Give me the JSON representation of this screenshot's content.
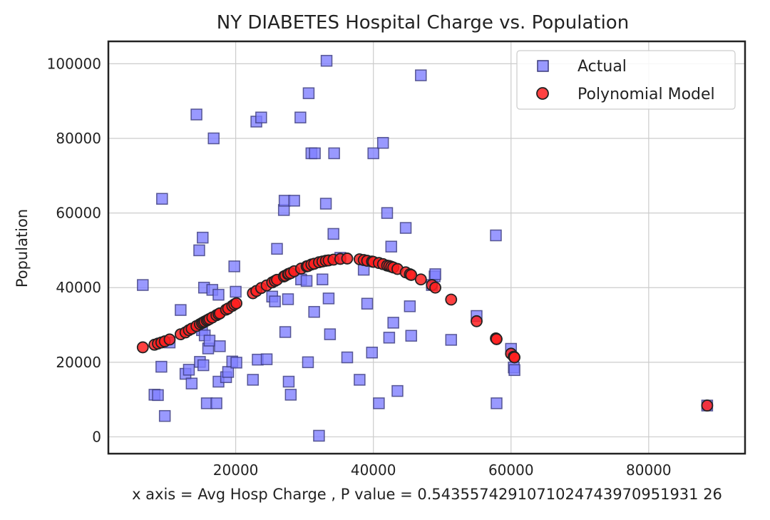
{
  "chart_data": {
    "type": "scatter",
    "title": "NY DIABETES Hospital Charge vs. Population",
    "xlabel": "x axis = Avg Hosp Charge , P value = 0.5435574291071024743970951931 26",
    "ylabel": "Population",
    "xlim": [
      1500,
      94000
    ],
    "ylim": [
      -4500,
      106000
    ],
    "x_ticks": [
      20000,
      40000,
      60000,
      80000
    ],
    "y_ticks": [
      0,
      20000,
      40000,
      60000,
      80000,
      100000
    ],
    "grid": true,
    "legend": {
      "position": "top-right",
      "entries": [
        "Actual",
        "Polynomial Model"
      ]
    },
    "series": [
      {
        "name": "Actual",
        "marker": "square",
        "color": "#7f7fff",
        "edge": "#3a3a7a",
        "points": [
          [
            6500,
            40700
          ],
          [
            8200,
            11300
          ],
          [
            8700,
            11200
          ],
          [
            9200,
            18800
          ],
          [
            9300,
            63800
          ],
          [
            9700,
            5600
          ],
          [
            10400,
            25300
          ],
          [
            12000,
            34000
          ],
          [
            12700,
            16900
          ],
          [
            13200,
            18000
          ],
          [
            13600,
            14300
          ],
          [
            14300,
            86400
          ],
          [
            14700,
            50000
          ],
          [
            14800,
            20100
          ],
          [
            15100,
            28600
          ],
          [
            15300,
            19200
          ],
          [
            15200,
            53400
          ],
          [
            15400,
            40000
          ],
          [
            15500,
            27200
          ],
          [
            15800,
            9000
          ],
          [
            16000,
            23700
          ],
          [
            16200,
            25800
          ],
          [
            16600,
            39400
          ],
          [
            16800,
            80000
          ],
          [
            17200,
            9000
          ],
          [
            17500,
            14800
          ],
          [
            17500,
            38100
          ],
          [
            17700,
            24300
          ],
          [
            18600,
            16000
          ],
          [
            18900,
            17400
          ],
          [
            19500,
            20200
          ],
          [
            19800,
            45700
          ],
          [
            20000,
            38900
          ],
          [
            20100,
            19900
          ],
          [
            22500,
            15300
          ],
          [
            23000,
            84500
          ],
          [
            23200,
            20700
          ],
          [
            23700,
            85600
          ],
          [
            24500,
            20800
          ],
          [
            25300,
            37600
          ],
          [
            25700,
            36300
          ],
          [
            26000,
            50400
          ],
          [
            27000,
            60800
          ],
          [
            27100,
            63300
          ],
          [
            27200,
            28100
          ],
          [
            27600,
            36900
          ],
          [
            27700,
            14800
          ],
          [
            28000,
            11300
          ],
          [
            28500,
            63300
          ],
          [
            29400,
            85600
          ],
          [
            29500,
            42200
          ],
          [
            30300,
            41800
          ],
          [
            30500,
            20000
          ],
          [
            30600,
            92100
          ],
          [
            31000,
            76000
          ],
          [
            31400,
            33500
          ],
          [
            31500,
            76000
          ],
          [
            32100,
            300
          ],
          [
            32600,
            42200
          ],
          [
            33100,
            62500
          ],
          [
            33200,
            100800
          ],
          [
            33500,
            37100
          ],
          [
            33700,
            27500
          ],
          [
            34200,
            54400
          ],
          [
            34300,
            76000
          ],
          [
            35200,
            48000
          ],
          [
            36200,
            21300
          ],
          [
            38000,
            15300
          ],
          [
            38600,
            44800
          ],
          [
            39100,
            35700
          ],
          [
            39800,
            22600
          ],
          [
            40000,
            76000
          ],
          [
            40800,
            9000
          ],
          [
            41400,
            78800
          ],
          [
            42000,
            60000
          ],
          [
            42300,
            26600
          ],
          [
            42600,
            51000
          ],
          [
            42900,
            30600
          ],
          [
            43500,
            12300
          ],
          [
            44700,
            56000
          ],
          [
            45300,
            35000
          ],
          [
            45500,
            27100
          ],
          [
            46900,
            96900
          ],
          [
            48500,
            40700
          ],
          [
            48900,
            43000
          ],
          [
            49000,
            43600
          ],
          [
            51300,
            26000
          ],
          [
            55000,
            32400
          ],
          [
            57800,
            54000
          ],
          [
            57900,
            9000
          ],
          [
            60000,
            23600
          ],
          [
            60400,
            18600
          ],
          [
            60500,
            17900
          ],
          [
            88500,
            8400
          ]
        ]
      },
      {
        "name": "Polynomial Model",
        "marker": "circle",
        "color": "#ff2020",
        "edge": "#222222",
        "points": [
          [
            6500,
            24000
          ],
          [
            8200,
            24700
          ],
          [
            8700,
            25000
          ],
          [
            9200,
            25300
          ],
          [
            9700,
            25600
          ],
          [
            10400,
            26100
          ],
          [
            12000,
            27500
          ],
          [
            12700,
            28000
          ],
          [
            13200,
            28600
          ],
          [
            13600,
            29000
          ],
          [
            14300,
            29700
          ],
          [
            14800,
            30200
          ],
          [
            15100,
            30500
          ],
          [
            15300,
            30700
          ],
          [
            15500,
            30900
          ],
          [
            15800,
            31200
          ],
          [
            16000,
            31400
          ],
          [
            16200,
            31600
          ],
          [
            16600,
            32000
          ],
          [
            17200,
            32600
          ],
          [
            17500,
            32900
          ],
          [
            17700,
            33100
          ],
          [
            18600,
            34100
          ],
          [
            18900,
            34400
          ],
          [
            19500,
            35100
          ],
          [
            19800,
            35500
          ],
          [
            20100,
            35800
          ],
          [
            22500,
            38500
          ],
          [
            23000,
            39100
          ],
          [
            23700,
            39900
          ],
          [
            24500,
            40600
          ],
          [
            25300,
            41400
          ],
          [
            25700,
            41800
          ],
          [
            26000,
            42100
          ],
          [
            27000,
            43000
          ],
          [
            27200,
            43200
          ],
          [
            27600,
            43600
          ],
          [
            27700,
            43700
          ],
          [
            28000,
            43900
          ],
          [
            28500,
            44400
          ],
          [
            29500,
            45100
          ],
          [
            30300,
            45700
          ],
          [
            30500,
            45800
          ],
          [
            31000,
            46200
          ],
          [
            31400,
            46400
          ],
          [
            32100,
            46800
          ],
          [
            32600,
            47000
          ],
          [
            33100,
            47200
          ],
          [
            33500,
            47300
          ],
          [
            34200,
            47500
          ],
          [
            35200,
            47700
          ],
          [
            36200,
            47800
          ],
          [
            38000,
            47600
          ],
          [
            38600,
            47400
          ],
          [
            39100,
            47200
          ],
          [
            39800,
            47000
          ],
          [
            40000,
            46900
          ],
          [
            40800,
            46600
          ],
          [
            41400,
            46300
          ],
          [
            42000,
            45900
          ],
          [
            42300,
            45800
          ],
          [
            42600,
            45600
          ],
          [
            42900,
            45400
          ],
          [
            43500,
            45000
          ],
          [
            44700,
            44100
          ],
          [
            45300,
            43600
          ],
          [
            45500,
            43400
          ],
          [
            46900,
            42200
          ],
          [
            48500,
            40700
          ],
          [
            49000,
            40000
          ],
          [
            51300,
            36800
          ],
          [
            55000,
            31000
          ],
          [
            57800,
            26400
          ],
          [
            57900,
            26200
          ],
          [
            60000,
            22300
          ],
          [
            60400,
            21500
          ],
          [
            60500,
            21300
          ],
          [
            88500,
            8400
          ]
        ]
      }
    ]
  }
}
